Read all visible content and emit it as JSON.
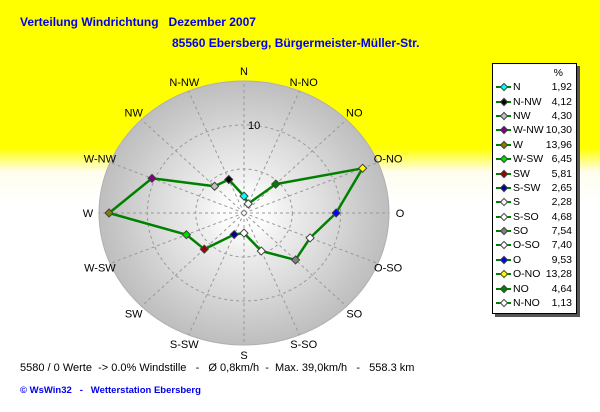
{
  "header": {
    "title": "Verteilung Windrichtung   Dezember 2007",
    "subtitle": "85560 Ebersberg, Bürgermeister-Müller-Str."
  },
  "colors": {
    "background_top": "#FFFF00",
    "text_blue": "#0000EE",
    "line_green": "#008000",
    "grid_gray": "#999999",
    "disk_edge": "#BEBEBE",
    "legend_shadow": "#555555"
  },
  "chart_data": {
    "type": "radar",
    "title": "Verteilung Windrichtung Dezember 2007",
    "unit": "%",
    "radial_axis": {
      "max": 15,
      "rings": [
        5,
        10
      ],
      "labeled_tick": "10"
    },
    "points": [
      {
        "dir": "N",
        "value": 1.92,
        "display": "1,92",
        "color": "#00FFFF"
      },
      {
        "dir": "N-NW",
        "value": 4.12,
        "display": "4,12",
        "color": "#000000"
      },
      {
        "dir": "NW",
        "value": 4.3,
        "display": "4,30",
        "color": "#C0C0C0"
      },
      {
        "dir": "W-NW",
        "value": 10.3,
        "display": "10,30",
        "color": "#800080"
      },
      {
        "dir": "W",
        "value": 13.96,
        "display": "13,96",
        "color": "#808000"
      },
      {
        "dir": "W-SW",
        "value": 6.45,
        "display": "6,45",
        "color": "#00DD00"
      },
      {
        "dir": "SW",
        "value": 5.81,
        "display": "5,81",
        "color": "#990000"
      },
      {
        "dir": "S-SW",
        "value": 2.65,
        "display": "2,65",
        "color": "#000099"
      },
      {
        "dir": "S",
        "value": 2.28,
        "display": "2,28",
        "color": "#FFFFFF"
      },
      {
        "dir": "S-SO",
        "value": 4.68,
        "display": "4,68",
        "color": "#FFFFFF"
      },
      {
        "dir": "SO",
        "value": 7.54,
        "display": "7,54",
        "color": "#808080"
      },
      {
        "dir": "O-SO",
        "value": 7.4,
        "display": "7,40",
        "color": "#FFFFFF"
      },
      {
        "dir": "O",
        "value": 9.53,
        "display": "9,53",
        "color": "#0000FF"
      },
      {
        "dir": "O-NO",
        "value": 13.28,
        "display": "13,28",
        "color": "#FFFF00"
      },
      {
        "dir": "NO",
        "value": 4.64,
        "display": "4,64",
        "color": "#008000"
      },
      {
        "dir": "N-NO",
        "value": 1.13,
        "display": "1,13",
        "color": "#FFFFFF"
      }
    ]
  },
  "legend": {
    "header": "%"
  },
  "footer": {
    "stats": "5580 / 0 Werte  -> 0.0% Windstille   -   Ø 0,8km/h  -  Max. 39,0km/h   -   558.3 km",
    "copyright": "© WsWin32   -   Wetterstation Ebersberg"
  }
}
